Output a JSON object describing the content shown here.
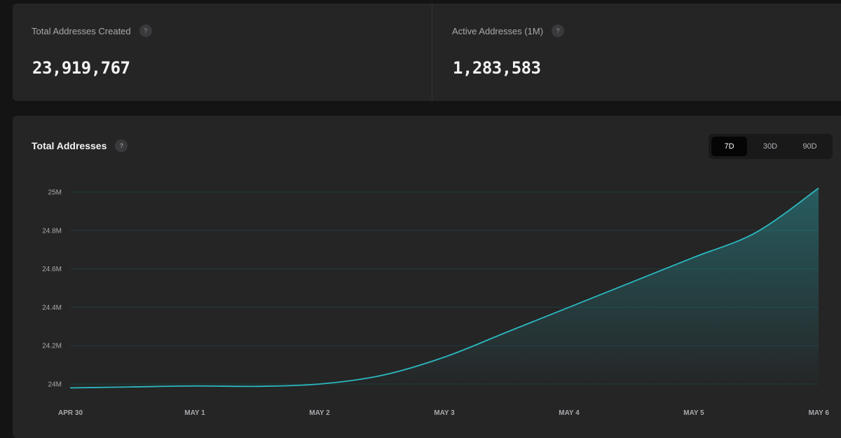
{
  "stats": [
    {
      "label": "Total Addresses Created",
      "help": "?",
      "value": "23,919,767"
    },
    {
      "label": "Active Addresses (1M)",
      "help": "?",
      "value": "1,283,583"
    }
  ],
  "chart_panel": {
    "title": "Total Addresses",
    "help": "?",
    "ranges": [
      {
        "label": "7D",
        "selected": true
      },
      {
        "label": "30D",
        "selected": false
      },
      {
        "label": "90D",
        "selected": false
      }
    ]
  },
  "colors": {
    "line": "#2bb8bf",
    "grid": "#1f3b3d",
    "card": "#252526"
  },
  "chart_data": {
    "type": "area",
    "title": "Total Addresses",
    "xlabel": "",
    "ylabel": "",
    "x_ticks": [
      "APR 30",
      "MAY 1",
      "MAY 2",
      "MAY 3",
      "MAY 4",
      "MAY 5",
      "MAY 6"
    ],
    "y_ticks": [
      "24M",
      "24.2M",
      "24.4M",
      "24.6M",
      "24.8M",
      "25M"
    ],
    "ylim": [
      24000000,
      25000000
    ],
    "grid": true,
    "legend": "none",
    "series": [
      {
        "values": [
          {
            "x": 0,
            "y": 23980000
          },
          {
            "x": 0.5,
            "y": 23985000
          },
          {
            "x": 1,
            "y": 23990000
          },
          {
            "x": 1.5,
            "y": 23988000
          },
          {
            "x": 2,
            "y": 24000000
          },
          {
            "x": 2.5,
            "y": 24045000
          },
          {
            "x": 3,
            "y": 24140000
          },
          {
            "x": 3.5,
            "y": 24270000
          },
          {
            "x": 4,
            "y": 24400000
          },
          {
            "x": 4.5,
            "y": 24530000
          },
          {
            "x": 5,
            "y": 24660000
          },
          {
            "x": 5.5,
            "y": 24790000
          },
          {
            "x": 6,
            "y": 25020000
          }
        ]
      }
    ]
  }
}
